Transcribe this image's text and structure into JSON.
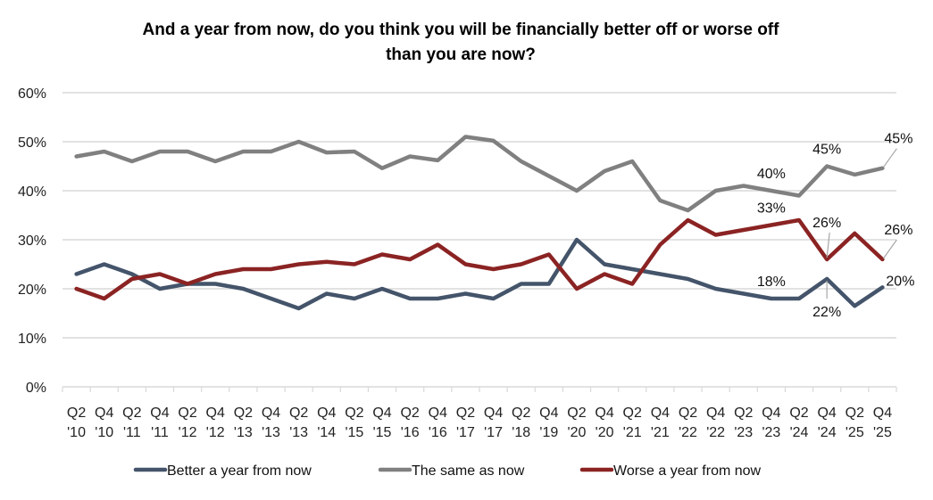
{
  "chart_data": {
    "type": "line",
    "title": "And a year from now, do you think you will be financially better off or worse off than you are now?",
    "title_lines": [
      "And a year from now, do you think you will be financially better off or worse off",
      "than you are now?"
    ],
    "xlabel": "",
    "ylabel": "",
    "ylim": [
      0,
      60
    ],
    "yticks": [
      "0%",
      "10%",
      "20%",
      "30%",
      "40%",
      "50%",
      "60%"
    ],
    "ytick_values": [
      0,
      10,
      20,
      30,
      40,
      50,
      60
    ],
    "grid": true,
    "legend_position": "bottom",
    "categories": [
      [
        "Q2",
        "'10"
      ],
      [
        "Q4",
        "'10"
      ],
      [
        "Q2",
        "'11"
      ],
      [
        "Q4",
        "'11"
      ],
      [
        "Q2",
        "'12"
      ],
      [
        "Q4",
        "'12"
      ],
      [
        "Q2",
        "'13"
      ],
      [
        "Q4",
        "'13"
      ],
      [
        "Q2",
        "'13"
      ],
      [
        "Q4",
        "'14"
      ],
      [
        "Q2",
        "'15"
      ],
      [
        "Q4",
        "'15"
      ],
      [
        "Q2",
        "'16"
      ],
      [
        "Q4",
        "'16"
      ],
      [
        "Q2",
        "'17"
      ],
      [
        "Q4",
        "'17"
      ],
      [
        "Q2",
        "'18"
      ],
      [
        "Q4",
        "'19"
      ],
      [
        "Q2",
        "'20"
      ],
      [
        "Q4",
        "'20"
      ],
      [
        "Q2",
        "'21"
      ],
      [
        "Q4",
        "'21"
      ],
      [
        "Q2",
        "'22"
      ],
      [
        "Q4",
        "'22"
      ],
      [
        "Q2",
        "'23"
      ],
      [
        "Q4",
        "'23"
      ],
      [
        "Q2",
        "'24"
      ],
      [
        "Q4",
        "'24"
      ],
      [
        "Q2",
        "'25"
      ],
      [
        "Q4",
        "'25"
      ]
    ],
    "series": [
      {
        "name": "Better a year from now",
        "color": "#44546A",
        "values": [
          23,
          25,
          23,
          20,
          21,
          21,
          20,
          18,
          16,
          19,
          18,
          20,
          18,
          18,
          19,
          18,
          21,
          21,
          30,
          25,
          24,
          23,
          22,
          20,
          19,
          18,
          18,
          22,
          16.5,
          20.3
        ],
        "labels": [
          {
            "index": 25,
            "text": "18%",
            "pos": "above"
          },
          {
            "index": 27,
            "text": "22%",
            "pos": "below-leader"
          },
          {
            "index": 29,
            "text": "20%",
            "pos": "right-above"
          }
        ]
      },
      {
        "name": "The same as now",
        "color": "#808080",
        "values": [
          47,
          48,
          46,
          48,
          48,
          46,
          48,
          48,
          50,
          47.8,
          48,
          44.6,
          47,
          46.2,
          51,
          50.2,
          46,
          43,
          40,
          44,
          46,
          38,
          36,
          40,
          41,
          40,
          39,
          45,
          43.3,
          44.6
        ],
        "labels": [
          {
            "index": 25,
            "text": "40%",
            "pos": "above"
          },
          {
            "index": 27,
            "text": "45%",
            "pos": "above"
          },
          {
            "index": 29,
            "text": "45%",
            "pos": "right-leader"
          }
        ]
      },
      {
        "name": "Worse a year from now",
        "color": "#8B2323",
        "values": [
          20,
          18,
          22,
          23,
          21,
          23,
          24,
          24,
          25,
          25.5,
          25,
          27,
          26,
          29,
          25,
          24,
          25,
          27,
          20,
          23,
          21,
          29,
          34,
          31,
          32,
          33,
          34,
          26,
          31.3,
          26
        ],
        "labels": [
          {
            "index": 25,
            "text": "33%",
            "pos": "above"
          },
          {
            "index": 27,
            "text": "26%",
            "pos": "above-leader"
          },
          {
            "index": 29,
            "text": "26%",
            "pos": "right-leader"
          }
        ]
      }
    ]
  }
}
